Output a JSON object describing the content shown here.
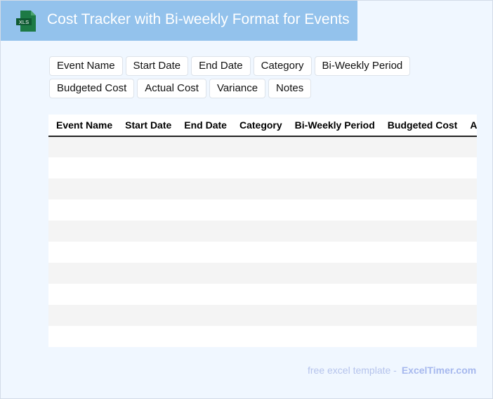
{
  "header": {
    "title": "Cost Tracker with Bi-weekly Format for Events",
    "logo_text": "XLS",
    "icon": "xls-file-icon",
    "color": "#93c2ec"
  },
  "columns": [
    "Event Name",
    "Start Date",
    "End Date",
    "Category",
    "Bi-Weekly Period",
    "Budgeted Cost",
    "Actual Cost",
    "Variance",
    "Notes"
  ],
  "rows": 10,
  "footer": {
    "text": "free excel template -",
    "brand": "ExcelTimer.com"
  }
}
